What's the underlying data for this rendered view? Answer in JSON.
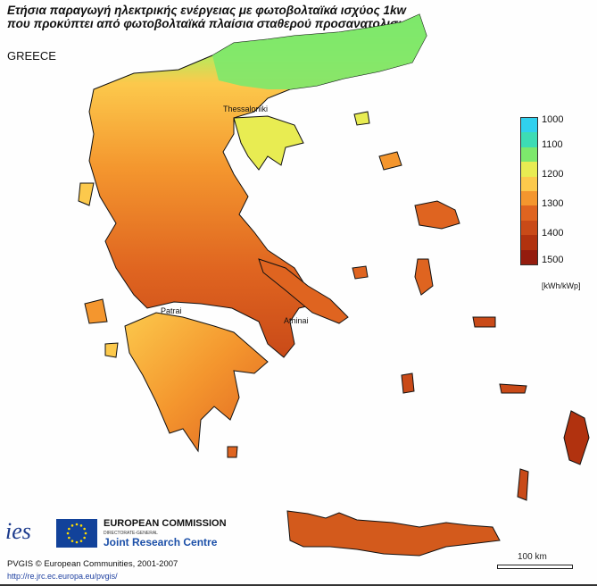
{
  "title_line1": "Ετήσια παραγωγή ηλεκτρικής ενέργειας με φωτοβολταϊκά ισχύος 1kw",
  "title_line2": "που προκύπτει από φωτοβολταϊκά πλαίσια σταθερού προσανατολισμού",
  "country": "GREECE",
  "cities": {
    "thessaloniki": "Thessaloniki",
    "athinai": "Athinai",
    "patrai": "Patrai"
  },
  "legend": {
    "labels": [
      "1000",
      "1100",
      "1200",
      "1300",
      "1400",
      "1500"
    ],
    "unit": "[kWh/kWp]",
    "colors": [
      "#30d0ee",
      "#3ddcb4",
      "#7de86c",
      "#e8ec52",
      "#fcc94c",
      "#f4962e",
      "#df6420",
      "#c94a18",
      "#b1320f",
      "#941c0e"
    ]
  },
  "logos": {
    "ies": "ies",
    "ec_title": "EUROPEAN COMMISSION",
    "ec_dg": "DIRECTORATE-GENERAL",
    "ec_jrc": "Joint Research Centre"
  },
  "copyright": "PVGIS © European Communities, 2001-2007",
  "url": "http://re.jrc.ec.europa.eu/pvgis/",
  "scale_label": "100 km"
}
